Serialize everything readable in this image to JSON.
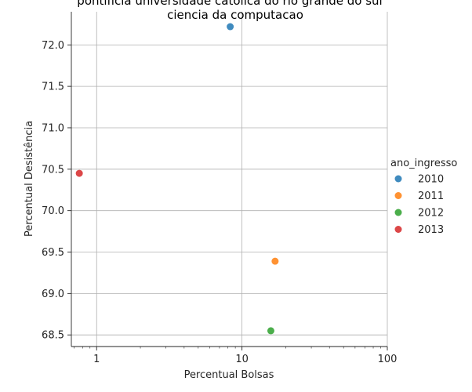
{
  "chart_data": {
    "type": "scatter",
    "title": "pontificia universidade catolica do rio grande do sul",
    "subtitle": "ciencia da computacao",
    "xlabel": "Percentual Bolsas",
    "ylabel": "Percentual Desistência",
    "x_scale": "log",
    "xlim": [
      0.67,
      100
    ],
    "ylim": [
      68.36,
      72.4
    ],
    "x_ticks": [
      1,
      10,
      100
    ],
    "x_tick_labels": [
      "1",
      "10",
      "100"
    ],
    "y_ticks": [
      68.5,
      69.0,
      69.5,
      70.0,
      70.5,
      71.0,
      71.5,
      72.0
    ],
    "y_tick_labels": [
      "68.5",
      "69.0",
      "69.5",
      "70.0",
      "70.5",
      "71.0",
      "71.5",
      "72.0"
    ],
    "grid": true,
    "legend_title": "ano_ingresso",
    "legend_position": "right",
    "series": [
      {
        "name": "2010",
        "color": "#1f77b4",
        "points": [
          {
            "x": 8.3,
            "y": 72.22
          }
        ]
      },
      {
        "name": "2011",
        "color": "#ff7f0e",
        "points": [
          {
            "x": 16.9,
            "y": 69.39
          }
        ]
      },
      {
        "name": "2012",
        "color": "#2ca02c",
        "points": [
          {
            "x": 15.8,
            "y": 68.55
          }
        ]
      },
      {
        "name": "2013",
        "color": "#d62728",
        "points": [
          {
            "x": 0.76,
            "y": 70.45
          }
        ]
      }
    ]
  }
}
